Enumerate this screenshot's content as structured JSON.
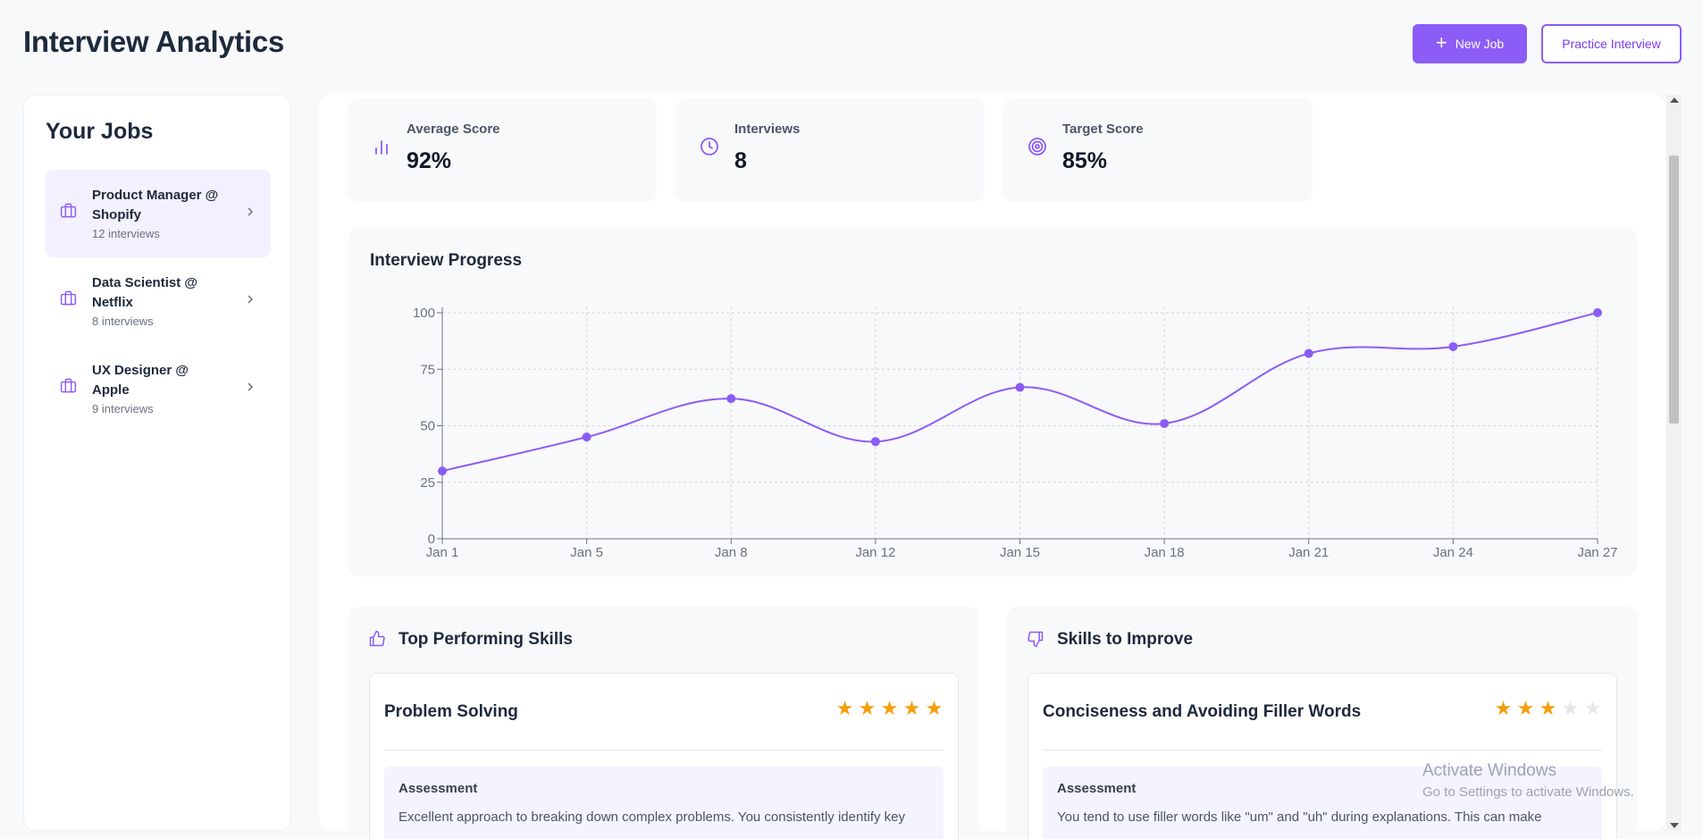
{
  "header": {
    "title": "Interview Analytics",
    "new_job_label": "New Job",
    "practice_label": "Practice Interview"
  },
  "sidebar": {
    "title": "Your Jobs",
    "jobs": [
      {
        "title": "Product Manager @ Shopify",
        "interviews": "12 interviews",
        "active": true
      },
      {
        "title": "Data Scientist @ Netflix",
        "interviews": "8 interviews",
        "active": false
      },
      {
        "title": "UX Designer @ Apple",
        "interviews": "9 interviews",
        "active": false
      }
    ]
  },
  "stats": [
    {
      "label": "Average Score",
      "value": "92%",
      "icon": "bar-chart-icon"
    },
    {
      "label": "Interviews",
      "value": "8",
      "icon": "clock-icon"
    },
    {
      "label": "Target Score",
      "value": "85%",
      "icon": "target-icon"
    }
  ],
  "chart": {
    "title": "Interview Progress"
  },
  "chart_data": {
    "type": "line",
    "categories": [
      "Jan 1",
      "Jan 5",
      "Jan 8",
      "Jan 12",
      "Jan 15",
      "Jan 18",
      "Jan 21",
      "Jan 24",
      "Jan 27"
    ],
    "values": [
      30,
      45,
      62,
      43,
      67,
      51,
      82,
      85,
      100
    ],
    "yticks": [
      0,
      25,
      50,
      75,
      100
    ],
    "ylim": [
      0,
      100
    ],
    "grid": true,
    "color": "#8b5cf6"
  },
  "skills": {
    "top": {
      "heading": "Top Performing Skills",
      "name": "Problem Solving",
      "rating": 5,
      "assessment_label": "Assessment",
      "assessment_text": "Excellent approach to breaking down complex problems. You consistently identify key"
    },
    "improve": {
      "heading": "Skills to Improve",
      "name": "Conciseness and Avoiding Filler Words",
      "rating": 3,
      "assessment_label": "Assessment",
      "assessment_text": "You tend to use filler words like \"um\" and \"uh\" during explanations. This can make"
    }
  },
  "watermark": {
    "line1": "Activate Windows",
    "line2": "Go to Settings to activate Windows."
  },
  "colors": {
    "accent": "#8b5cf6",
    "star": "#f59e0b"
  }
}
